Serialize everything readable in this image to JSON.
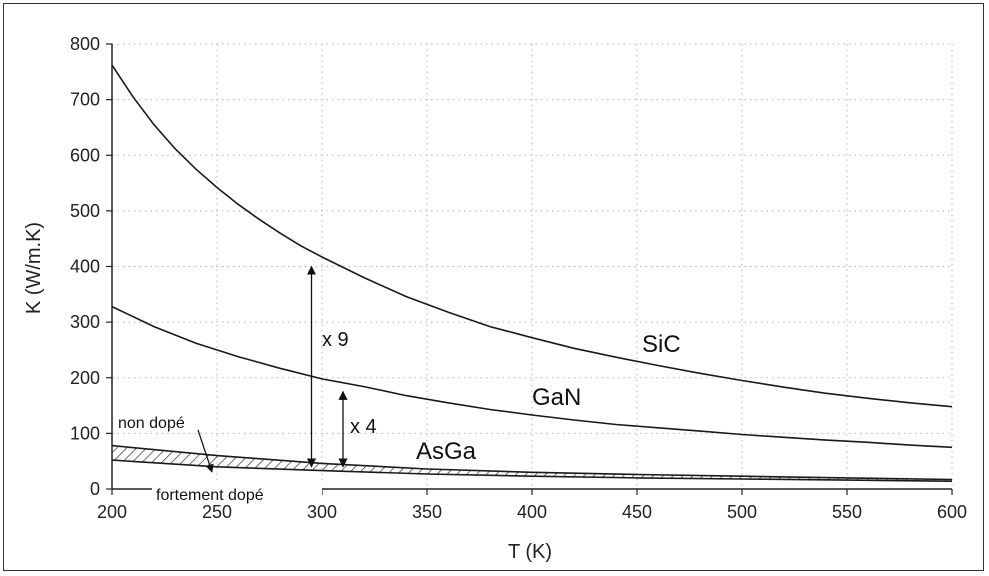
{
  "chart_data": {
    "type": "line",
    "xlabel": "T (K)",
    "ylabel": "K (W/m.K)",
    "xlim": [
      200,
      600
    ],
    "ylim": [
      0,
      800
    ],
    "xticks": [
      200,
      250,
      300,
      350,
      400,
      450,
      500,
      550,
      600
    ],
    "yticks": [
      0,
      100,
      200,
      300,
      400,
      500,
      600,
      700,
      800
    ],
    "grid": "dotted",
    "series": [
      {
        "name": "SiC",
        "x": [
          200,
          210,
          220,
          230,
          240,
          250,
          260,
          270,
          280,
          290,
          300,
          320,
          340,
          360,
          380,
          400,
          420,
          440,
          460,
          480,
          500,
          520,
          540,
          560,
          580,
          600
        ],
        "y": [
          762,
          705,
          655,
          612,
          575,
          542,
          512,
          485,
          460,
          437,
          417,
          380,
          346,
          318,
          292,
          272,
          253,
          237,
          222,
          208,
          195,
          183,
          172,
          163,
          155,
          148
        ]
      },
      {
        "name": "GaN",
        "x": [
          200,
          220,
          240,
          260,
          280,
          300,
          320,
          340,
          360,
          380,
          400,
          420,
          440,
          460,
          480,
          500,
          520,
          540,
          560,
          580,
          600
        ],
        "y": [
          328,
          292,
          262,
          238,
          217,
          198,
          184,
          168,
          155,
          143,
          133,
          124,
          116,
          110,
          104,
          98,
          93,
          88,
          84,
          79,
          75
        ]
      },
      {
        "name": "AsGa",
        "variant": "non dopé",
        "x": [
          200,
          250,
          300,
          350,
          400,
          450,
          500,
          550,
          600
        ],
        "y": [
          78,
          60,
          46,
          36,
          30,
          26,
          23,
          20,
          17
        ]
      },
      {
        "name": "AsGa",
        "variant": "fortement dopé",
        "x": [
          200,
          250,
          300,
          350,
          400,
          450,
          500,
          550,
          600
        ],
        "y": [
          52,
          40,
          33,
          27,
          23,
          20,
          18,
          16,
          14
        ]
      }
    ],
    "annotations": {
      "sic": "SiC",
      "gan": "GaN",
      "asga": "AsGa",
      "x9": "x 9",
      "x4": "x 4",
      "non_dope": "non dopé",
      "fortement_dope": "fortement dopé"
    },
    "ratio_arrows": [
      {
        "x": 295,
        "y_from": 40,
        "y_to": 400,
        "label_key": "x9"
      },
      {
        "x": 310,
        "y_from": 40,
        "y_to": 175,
        "label_key": "x4"
      }
    ],
    "colors": {
      "line": "#1a1a1a",
      "grid": "#b5b5b5",
      "hatch": "#333333"
    }
  }
}
